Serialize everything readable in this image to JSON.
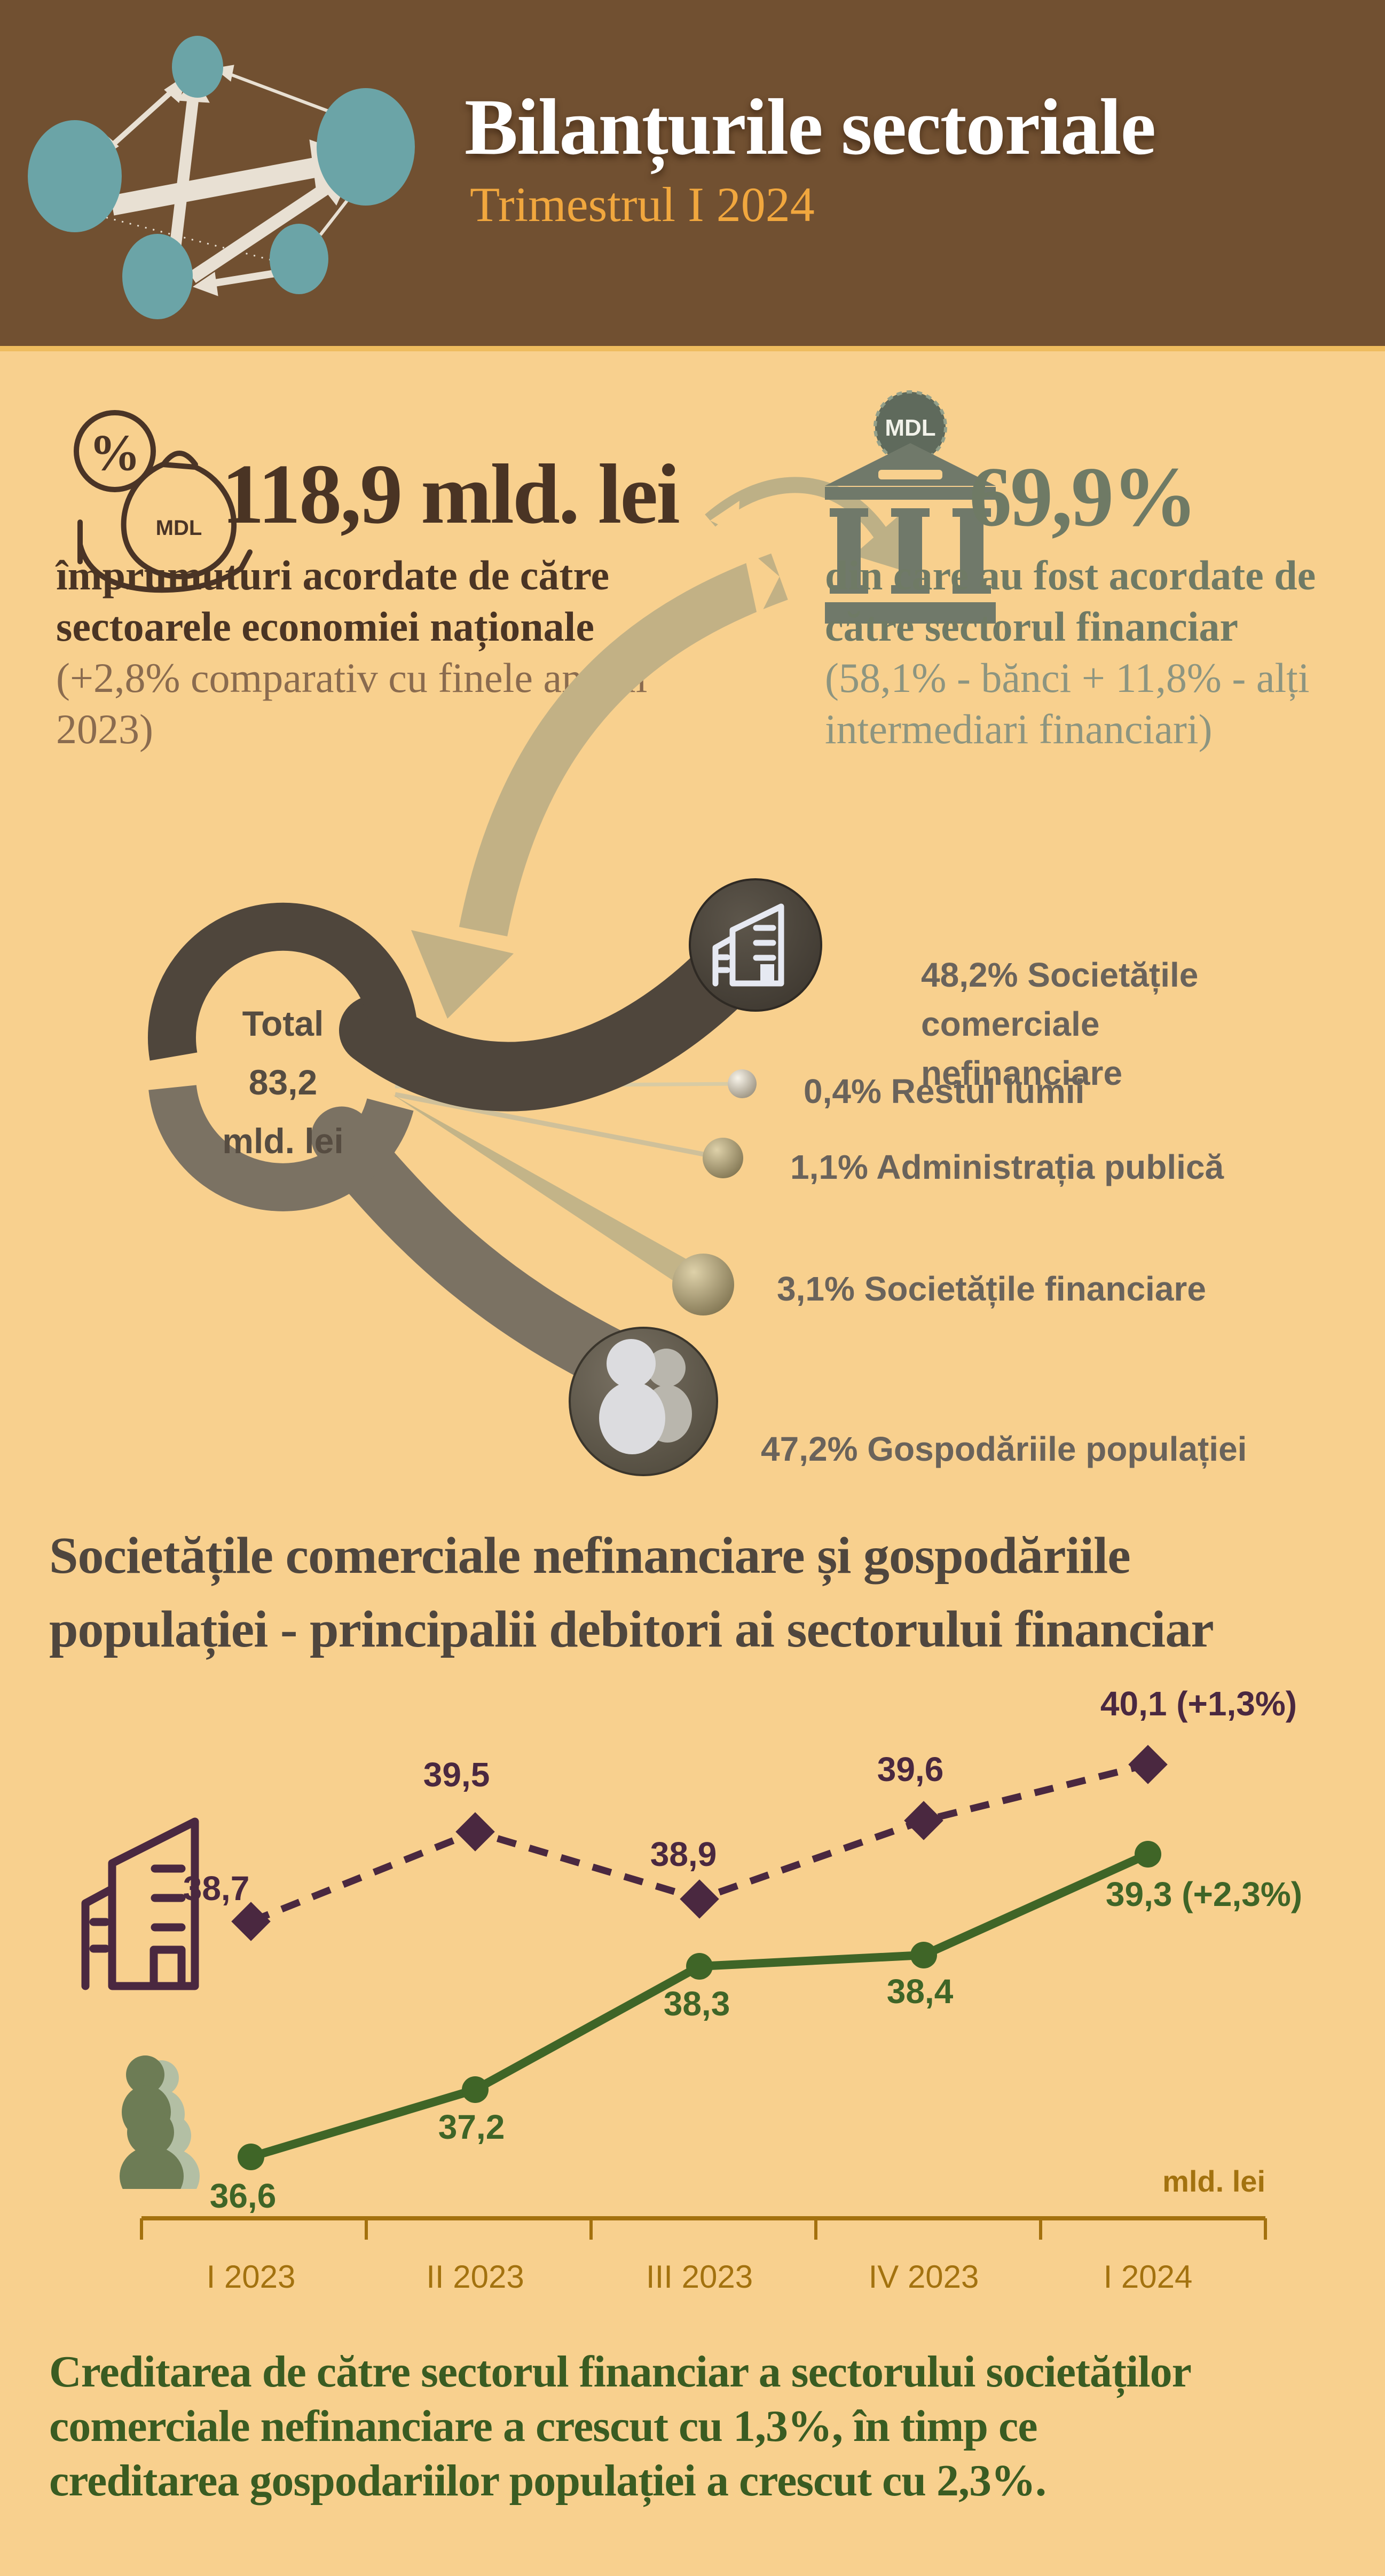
{
  "header": {
    "title": "Bilanțurile sectoriale",
    "subtitle": "Trimestrul I 2024"
  },
  "stats": {
    "left": {
      "value": "118,9 mld. lei",
      "desc": "împrumuturi acordate de către\nsectoarele economiei naționale",
      "note": "(+2,8% comparativ cu finele anului\n2023)",
      "icon_percent": "%",
      "icon_currency": "MDL"
    },
    "right": {
      "value": "69,9%",
      "desc": "din care au fost acordate de\ncătre sectorul financiar",
      "note": "(58,1% - bănci + 11,8% - alți\nintermediari financiari)",
      "coin_label": "MDL"
    }
  },
  "donut": {
    "center_label": "Total\n83,2\nmld. lei",
    "segments": [
      {
        "label": "Societățile comerciale nefinanciare",
        "pct": 48.2
      },
      {
        "label": "Gospodăriile populației",
        "pct": 47.2
      },
      {
        "label": "Societățile financiare",
        "pct": 3.1
      },
      {
        "label": "Administrația publică",
        "pct": 1.1
      },
      {
        "label": "Restul lumii",
        "pct": 0.4
      }
    ]
  },
  "breakdown": [
    {
      "pct": "48,2%",
      "name": "Societățile comerciale\nnefinanciare"
    },
    {
      "pct": "0,4%",
      "name": "Restul lumii"
    },
    {
      "pct": "1,1%",
      "name": "Administrația publică"
    },
    {
      "pct": "3,1%",
      "name": "Societățile financiare"
    },
    {
      "pct": "47,2%",
      "name": "Gospodăriile populației"
    }
  ],
  "section_title": "Societățile comerciale nefinanciare și gospodăriile\npopulației - principalii debitori ai sectorului financiar",
  "chart_data": {
    "type": "line",
    "categories": [
      "I 2023",
      "II 2023",
      "III 2023",
      "IV 2023",
      "I 2024"
    ],
    "series": [
      {
        "name": "Societățile comerciale nefinanciare",
        "values": [
          38.7,
          39.5,
          38.9,
          39.6,
          40.1
        ],
        "labels": [
          "38,7",
          "39,5",
          "38,9",
          "39,6",
          "40,1"
        ],
        "end_note": "(+1,3%)",
        "color": "#4a2840",
        "style": "dashed",
        "marker": "diamond"
      },
      {
        "name": "Gospodăriile populației",
        "values": [
          36.6,
          37.2,
          38.3,
          38.4,
          39.3
        ],
        "labels": [
          "36,6",
          "37,2",
          "38,3",
          "38,4",
          "39,3"
        ],
        "end_note": "(+2,3%)",
        "color": "#3f6527",
        "style": "solid",
        "marker": "circle"
      }
    ],
    "unit_label": "mld. lei",
    "ylim": [
      36,
      41
    ],
    "grid": false,
    "legend_position": "icons-at-line-start"
  },
  "footer_text": "Creditarea de către sectorul financiar a sectorului societăților\ncomerciale nefinanciare a crescut cu 1,3%, în timp ce\ncreditarea gospodariilor populației a crescut cu 2,3%.",
  "colors": {
    "background": "#f8d08e",
    "header": "#715031",
    "subtitle_gold": "#f1a73e",
    "brown_text": "#4a3424",
    "sage_text": "#6f7a65",
    "maroon_series": "#4a2840",
    "green_series": "#3f6527",
    "axis_gold": "#a3720f",
    "donut_dark": "#4f463c",
    "donut_light": "#7b7263",
    "teal_network": "#6ba4a7",
    "tan_arrow": "#c2b185",
    "footer_green": "#3a5c22"
  }
}
